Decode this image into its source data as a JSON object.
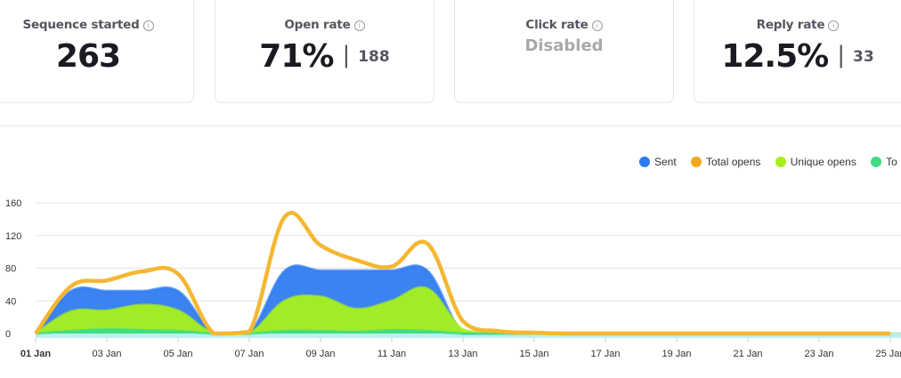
{
  "stats": [
    {
      "label": "Sequence started",
      "value": "263"
    },
    {
      "label": "Open rate",
      "value": "71%",
      "count": "188"
    },
    {
      "label": "Click rate",
      "value": "Disabled"
    },
    {
      "label": "Reply rate",
      "value": "12.5%",
      "count": "33"
    }
  ],
  "legend": [
    {
      "label": "Sent",
      "color": "#2f7cf0"
    },
    {
      "label": "Total opens",
      "color": "#f5a623"
    },
    {
      "label": "Unique opens",
      "color": "#a6f01c"
    },
    {
      "label": "To",
      "color": "#3ddc84"
    }
  ],
  "chart_data": {
    "type": "area",
    "x": [
      "01 Jan",
      "02 Jan",
      "03 Jan",
      "04 Jan",
      "05 Jan",
      "06 Jan",
      "07 Jan",
      "08 Jan",
      "09 Jan",
      "10 Jan",
      "11 Jan",
      "12 Jan",
      "13 Jan",
      "14 Jan",
      "15 Jan",
      "16 Jan",
      "17 Jan",
      "18 Jan",
      "19 Jan",
      "20 Jan",
      "21 Jan",
      "22 Jan",
      "23 Jan",
      "24 Jan",
      "25 Jan"
    ],
    "xticks": [
      "01 Jan",
      "03 Jan",
      "05 Jan",
      "07 Jan",
      "09 Jan",
      "11 Jan",
      "13 Jan",
      "15 Jan",
      "17 Jan",
      "19 Jan",
      "21 Jan",
      "23 Jan",
      "25 Jan"
    ],
    "yticks": [
      0,
      40,
      80,
      120,
      160
    ],
    "ylim": [
      0,
      160
    ],
    "grid": true,
    "legend_position": "top-right",
    "series": [
      {
        "name": "Sent",
        "color": "#2f7cf0",
        "kind": "area",
        "values": [
          0,
          52,
          52,
          52,
          52,
          0,
          0,
          77,
          77,
          77,
          77,
          77,
          0,
          0,
          0,
          0,
          0,
          0,
          0,
          0,
          0,
          0,
          0,
          0,
          0
        ]
      },
      {
        "name": "Unique opens",
        "color": "#a6f01c",
        "kind": "area",
        "values": [
          0,
          27,
          28,
          35,
          28,
          0,
          0,
          40,
          45,
          30,
          40,
          55,
          5,
          0,
          0,
          0,
          0,
          0,
          0,
          0,
          0,
          0,
          0,
          0,
          0
        ]
      },
      {
        "name": "To",
        "color": "#3ddc84",
        "kind": "area",
        "values": [
          0,
          3,
          5,
          4,
          3,
          0,
          0,
          3,
          3,
          2,
          4,
          3,
          0,
          0,
          0,
          0,
          0,
          0,
          0,
          0,
          0,
          0,
          0,
          0,
          0
        ]
      },
      {
        "name": "Total opens",
        "color": "#f5b731",
        "kind": "line",
        "values": [
          0,
          58,
          65,
          76,
          73,
          0,
          2,
          143,
          108,
          90,
          82,
          110,
          15,
          3,
          1,
          0,
          0,
          0,
          0,
          0,
          0,
          0,
          0,
          0,
          0
        ]
      }
    ]
  }
}
